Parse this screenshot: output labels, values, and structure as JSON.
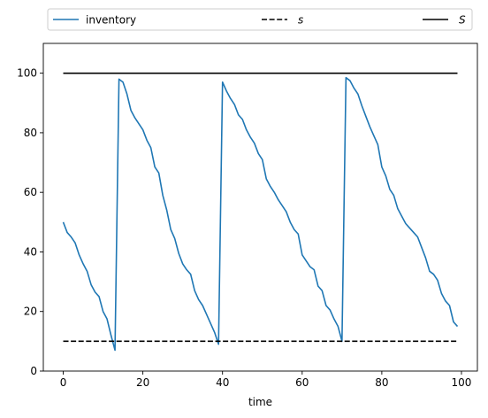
{
  "chart_data": {
    "type": "line",
    "title": "",
    "xlabel": "time",
    "ylabel": "",
    "xlim": [
      -5,
      104
    ],
    "ylim": [
      0,
      110
    ],
    "xticks": [
      0,
      20,
      40,
      60,
      80,
      100
    ],
    "yticks": [
      0,
      20,
      40,
      60,
      80,
      100
    ],
    "grid": false,
    "legend": {
      "placement": "top, above plot (3 columns)",
      "entries": [
        "inventory",
        "s",
        "S"
      ]
    },
    "series": [
      {
        "name": "inventory",
        "color": "#1f77b4",
        "style": "solid",
        "x": [
          0,
          1,
          2,
          3,
          4,
          5,
          6,
          7,
          8,
          9,
          10,
          11,
          12,
          13,
          14,
          15,
          16,
          17,
          18,
          19,
          20,
          21,
          22,
          23,
          24,
          25,
          26,
          27,
          28,
          29,
          30,
          31,
          32,
          33,
          34,
          35,
          36,
          37,
          38,
          39,
          40,
          41,
          42,
          43,
          44,
          45,
          46,
          47,
          48,
          49,
          50,
          51,
          52,
          53,
          54,
          55,
          56,
          57,
          58,
          59,
          60,
          61,
          62,
          63,
          64,
          65,
          66,
          67,
          68,
          69,
          70,
          71,
          72,
          73,
          74,
          75,
          76,
          77,
          78,
          79,
          80,
          81,
          82,
          83,
          84,
          85,
          86,
          87,
          88,
          89,
          90,
          91,
          92,
          93,
          94,
          95,
          96,
          97,
          98,
          99
        ],
        "y": [
          50,
          46.5,
          45,
          43,
          39,
          36,
          33.5,
          29,
          26.5,
          25,
          20,
          17.5,
          12,
          7,
          98,
          97,
          93,
          87.5,
          85,
          83,
          81,
          77.5,
          75,
          68.5,
          66.5,
          59,
          54,
          47.5,
          44.5,
          39.5,
          36,
          34,
          32.5,
          27,
          24,
          22,
          19,
          16,
          13,
          9,
          97,
          94,
          91.5,
          89.5,
          86,
          84.5,
          81,
          78.5,
          76.5,
          73,
          71,
          64.5,
          62,
          60,
          57.5,
          55.5,
          53.5,
          50,
          47.5,
          46,
          39,
          37,
          35,
          34,
          28.5,
          27,
          22,
          20.5,
          17.5,
          15,
          10,
          98.5,
          97.5,
          95,
          93,
          89,
          85.5,
          82,
          79,
          76,
          68.5,
          65.5,
          61,
          59,
          54.5,
          52,
          49.5,
          48,
          46.5,
          45,
          41.5,
          38,
          33.5,
          32.5,
          30.5,
          26,
          23.5,
          22,
          16.5,
          15
        ]
      },
      {
        "name": "s",
        "color": "#000000",
        "style": "dashed",
        "x": [
          0,
          99
        ],
        "y": [
          10,
          10
        ]
      },
      {
        "name": "S",
        "color": "#000000",
        "style": "solid",
        "x": [
          0,
          99
        ],
        "y": [
          100,
          100
        ]
      }
    ]
  }
}
